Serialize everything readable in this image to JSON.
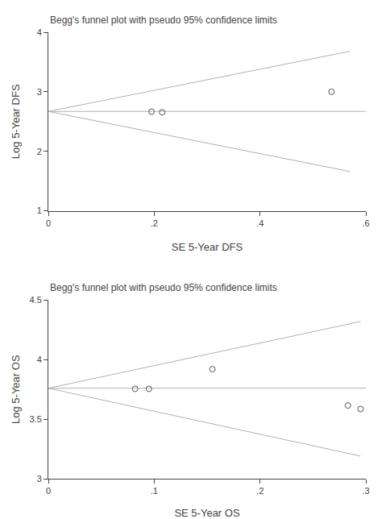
{
  "chart_data": [
    {
      "type": "scatter",
      "title": "Begg's funnel plot with pseudo 95% confidence limits",
      "x_label": "SE 5-Year DFS",
      "y_label": "Log 5-Year DFS",
      "xlim": [
        0,
        0.6
      ],
      "ylim": [
        1,
        4
      ],
      "xticks": [
        0,
        {
          "value": 0.2,
          "label": ".2"
        },
        {
          "value": 0.4,
          "label": ".4"
        },
        {
          "value": 0.6,
          "label": ".6"
        }
      ],
      "yticks": [
        1,
        2,
        3,
        4
      ],
      "grid": false,
      "series": [
        {
          "type": "scatter",
          "color": "#555555",
          "marker": "open circle",
          "x": [
            0.195,
            0.215,
            0.535
          ],
          "values": [
            2.665,
            2.655,
            3.0
          ]
        }
      ],
      "center_line": {
        "value": 2.67,
        "color": "#b0b0b0"
      },
      "upper_line": {
        "x": [
          0.0,
          0.57
        ],
        "values": [
          2.67,
          3.68
        ],
        "color": "#b0b0b0"
      },
      "lower_line": {
        "x": [
          0.0,
          0.57
        ],
        "values": [
          2.67,
          1.66
        ],
        "color": "#b0b0b0"
      }
    },
    {
      "type": "scatter",
      "title": "Begg's funnel plot with pseudo 95% confidence limits",
      "x_label": "SE 5-Year OS",
      "y_label": "Log 5-Year OS",
      "xlim": [
        0,
        0.3
      ],
      "ylim": [
        3,
        4.5
      ],
      "xticks": [
        0,
        {
          "value": 0.1,
          "label": ".1"
        },
        {
          "value": 0.2,
          "label": ".2"
        },
        {
          "value": 0.3,
          "label": ".3"
        }
      ],
      "yticks": [
        3,
        3.5,
        4,
        4.5
      ],
      "grid": false,
      "series": [
        {
          "type": "scatter",
          "color": "#555555",
          "marker": "open circle",
          "x": [
            0.082,
            0.095,
            0.155,
            0.283,
            0.295
          ],
          "values": [
            3.755,
            3.755,
            3.92,
            3.615,
            3.585
          ]
        }
      ],
      "center_line": {
        "value": 3.76,
        "color": "#b0b0b0"
      },
      "upper_line": {
        "x": [
          0.0,
          0.295
        ],
        "values": [
          3.76,
          4.32
        ],
        "color": "#b0b0b0"
      },
      "lower_line": {
        "x": [
          0.0,
          0.295
        ],
        "values": [
          3.76,
          3.19
        ],
        "color": "#b0b0b0"
      }
    }
  ]
}
